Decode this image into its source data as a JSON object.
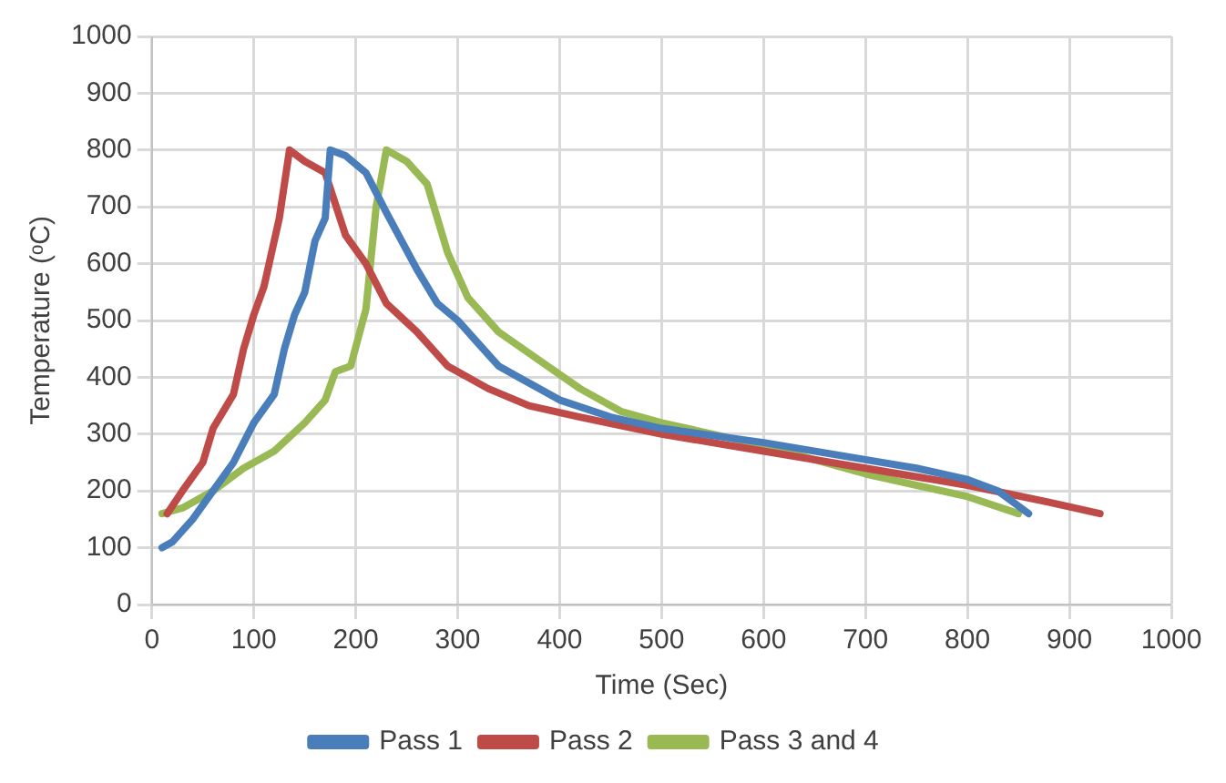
{
  "chart_data": {
    "type": "line",
    "xlabel": "Time (Sec)",
    "ylabel": "Temperature (ᵒC)",
    "xlim": [
      0,
      1000
    ],
    "xticks": [
      0,
      100,
      200,
      300,
      400,
      500,
      600,
      700,
      800,
      900,
      1000
    ],
    "ylim": [
      0,
      1000
    ],
    "yticks": [
      0,
      100,
      200,
      300,
      400,
      500,
      600,
      700,
      800,
      900,
      1000
    ],
    "grid": true,
    "legend": "bottom",
    "marker": "none",
    "line_style": "solid",
    "series": [
      {
        "name": "Pass 1",
        "color": "#4a7ebb",
        "x": [
          10,
          20,
          40,
          60,
          80,
          100,
          120,
          130,
          140,
          150,
          160,
          170,
          175,
          190,
          210,
          230,
          260,
          280,
          300,
          320,
          340,
          360,
          400,
          450,
          500,
          600,
          700,
          750,
          800,
          830,
          860
        ],
        "values": [
          100,
          110,
          150,
          200,
          250,
          320,
          370,
          450,
          510,
          550,
          640,
          680,
          800,
          790,
          760,
          690,
          590,
          530,
          500,
          460,
          420,
          400,
          360,
          330,
          310,
          285,
          255,
          240,
          220,
          200,
          160
        ]
      },
      {
        "name": "Pass 2",
        "color": "#be4b48",
        "x": [
          15,
          30,
          50,
          60,
          80,
          90,
          100,
          110,
          120,
          125,
          135,
          150,
          170,
          190,
          210,
          230,
          260,
          290,
          330,
          370,
          420,
          500,
          600,
          700,
          800,
          880,
          930
        ],
        "values": [
          160,
          200,
          250,
          310,
          370,
          450,
          510,
          560,
          640,
          680,
          800,
          780,
          760,
          650,
          600,
          530,
          480,
          420,
          380,
          350,
          330,
          300,
          270,
          240,
          210,
          180,
          160
        ]
      },
      {
        "name": "Pass 3 and 4",
        "color": "#98b954",
        "x": [
          10,
          30,
          60,
          90,
          120,
          150,
          170,
          180,
          195,
          210,
          220,
          230,
          250,
          270,
          290,
          310,
          340,
          380,
          420,
          460,
          500,
          600,
          700,
          800,
          850
        ],
        "values": [
          160,
          170,
          200,
          240,
          270,
          320,
          360,
          410,
          420,
          520,
          700,
          800,
          780,
          740,
          620,
          540,
          480,
          430,
          380,
          340,
          320,
          280,
          230,
          190,
          160
        ]
      }
    ]
  }
}
